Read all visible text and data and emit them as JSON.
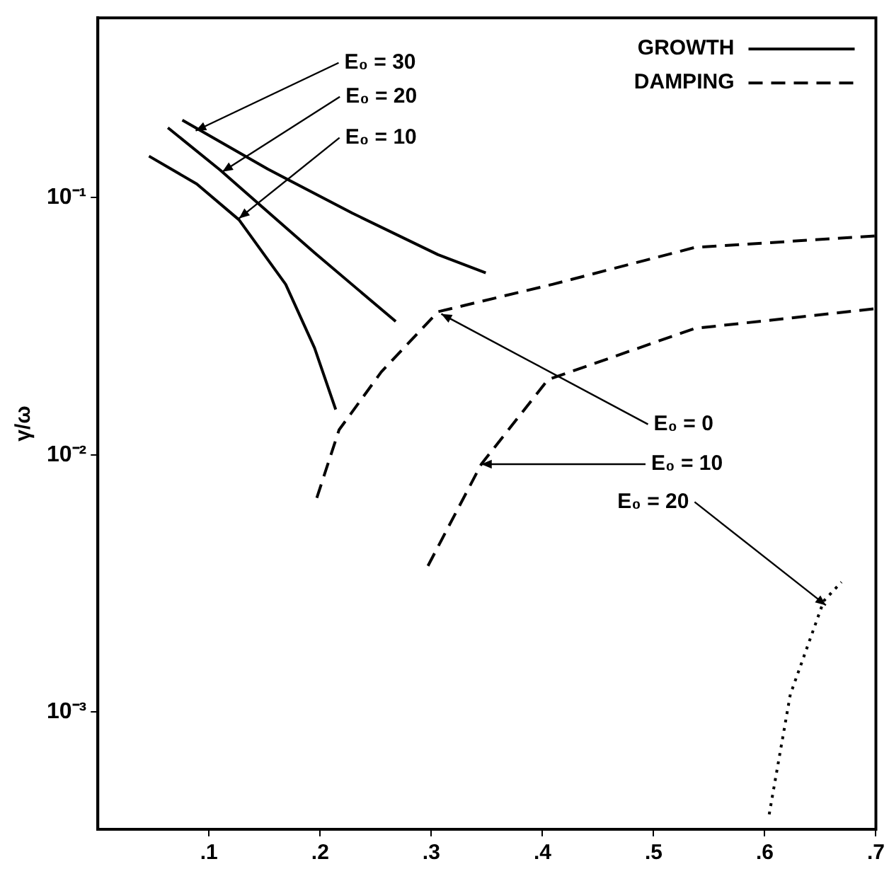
{
  "chart_data": {
    "type": "line",
    "ylabel": "γ/ω",
    "log": "y",
    "grid": false,
    "legend": "top right",
    "marker": "none",
    "xlim": [
      0,
      0.7
    ],
    "xticks": [
      {
        "value": 0.1,
        "label": ".1"
      },
      {
        "value": 0.2,
        "label": ".2"
      },
      {
        "value": 0.3,
        "label": ".3"
      },
      {
        "value": 0.4,
        "label": ".4"
      },
      {
        "value": 0.5,
        "label": ".5"
      },
      {
        "value": 0.6,
        "label": ".6"
      },
      {
        "value": 0.7,
        "label": ".7"
      }
    ],
    "ylim": [
      0.00035,
      0.5
    ],
    "yticks": [
      {
        "value": 0.1,
        "label": "10⁻¹"
      },
      {
        "value": 0.01,
        "label": "10⁻²"
      },
      {
        "value": 0.001,
        "label": "10⁻³"
      }
    ],
    "series": [
      {
        "name": "GROWTH",
        "color": "#000000",
        "line_style": "solid",
        "x": [
          0.076,
          0.153,
          0.229,
          0.306,
          0.349
        ],
        "values": [
          0.2,
          0.129,
          0.087,
          0.06,
          0.051
        ]
      },
      {
        "color": "#000000",
        "line_style": "solid",
        "x": [
          0.063,
          0.11,
          0.195,
          0.268
        ],
        "values": [
          0.187,
          0.128,
          0.061,
          0.033
        ]
      },
      {
        "color": "#000000",
        "line_style": "solid",
        "x": [
          0.046,
          0.089,
          0.127,
          0.169,
          0.195,
          0.214
        ],
        "values": [
          0.145,
          0.113,
          0.082,
          0.046,
          0.026,
          0.015
        ]
      },
      {
        "name": "DAMPING",
        "color": "#000000",
        "line_style": "dashed",
        "x": [
          0.197,
          0.217,
          0.255,
          0.306,
          0.409,
          0.537,
          0.7
        ],
        "values": [
          0.0068,
          0.0125,
          0.021,
          0.036,
          0.046,
          0.064,
          0.071
        ]
      },
      {
        "color": "#000000",
        "line_style": "dashed",
        "x": [
          0.297,
          0.345,
          0.405,
          0.537,
          0.7
        ],
        "values": [
          0.0037,
          0.0092,
          0.0196,
          0.031,
          0.037
        ]
      },
      {
        "color": "#000000",
        "line_style": "dotted",
        "x": [
          0.604,
          0.623,
          0.653,
          0.669
        ],
        "values": [
          0.0004,
          0.00117,
          0.0027,
          0.0032
        ]
      }
    ],
    "annotations": [
      {
        "text": "E₀ = 30",
        "x": 0.088,
        "y": 0.182
      },
      {
        "text": "E₀ = 20",
        "x": 0.112,
        "y": 0.126
      },
      {
        "text": "E₀ = 10",
        "x": 0.127,
        "y": 0.083
      },
      {
        "text": "E₀ = 0",
        "x": 0.309,
        "y": 0.0353
      },
      {
        "text": "E₀ = 10",
        "x": 0.345,
        "y": 0.0092
      },
      {
        "text": "E₀ = 20",
        "x": 0.655,
        "y": 0.0026
      }
    ]
  }
}
